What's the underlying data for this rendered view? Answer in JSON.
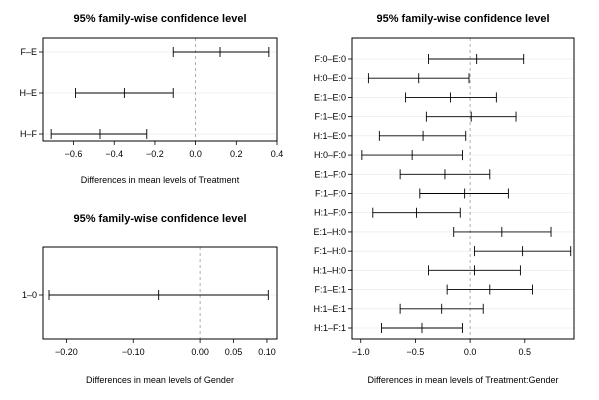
{
  "chart_data": [
    {
      "type": "errorbar",
      "title": "95% family-wise confidence level",
      "xlabel": "Differences in mean levels of Treatment",
      "xlim": [
        -0.75,
        0.4
      ],
      "xticks": [
        -0.6,
        -0.4,
        -0.2,
        0.0,
        0.2,
        0.4
      ],
      "xtick_labels": [
        "−0.6",
        "−0.4",
        "−0.2",
        "0.0",
        "0.2",
        "0.4"
      ],
      "reference_line": 0,
      "comparisons": [
        {
          "label": "F–E",
          "diff": 0.12,
          "lwr": -0.11,
          "upr": 0.36
        },
        {
          "label": "H–E",
          "diff": -0.35,
          "lwr": -0.59,
          "upr": -0.11
        },
        {
          "label": "H–F",
          "diff": -0.47,
          "lwr": -0.71,
          "upr": -0.24
        }
      ]
    },
    {
      "type": "errorbar",
      "title": "95% family-wise confidence level",
      "xlabel": "Differences in mean levels of Gender",
      "xlim": [
        -0.235,
        0.115
      ],
      "xticks": [
        -0.2,
        -0.1,
        0.0,
        0.05,
        0.1
      ],
      "xtick_labels": [
        "−0.20",
        "−0.10",
        "0.00",
        "0.05",
        "0.10"
      ],
      "reference_line": 0,
      "comparisons": [
        {
          "label": "1–0",
          "diff": -0.062,
          "lwr": -0.226,
          "upr": 0.102
        }
      ]
    },
    {
      "type": "errorbar",
      "title": "95% family-wise confidence level",
      "xlabel": "Differences in mean levels of Treatment:Gender",
      "xlim": [
        -1.08,
        0.95
      ],
      "xticks": [
        -1.0,
        -0.5,
        0.0,
        0.5
      ],
      "xtick_labels": [
        "−1.0",
        "−0.5",
        "0.0",
        "0.5"
      ],
      "reference_line": 0,
      "comparisons": [
        {
          "label": "F:0–E:0",
          "diff": 0.06,
          "lwr": -0.38,
          "upr": 0.49
        },
        {
          "label": "H:0–E:0",
          "diff": -0.47,
          "lwr": -0.93,
          "upr": -0.01
        },
        {
          "label": "E:1–E:0",
          "diff": -0.18,
          "lwr": -0.59,
          "upr": 0.24
        },
        {
          "label": "F:1–E:0",
          "diff": 0.01,
          "lwr": -0.4,
          "upr": 0.42
        },
        {
          "label": "H:1–E:0",
          "diff": -0.43,
          "lwr": -0.83,
          "upr": -0.04
        },
        {
          "label": "H:0–F:0",
          "diff": -0.53,
          "lwr": -0.99,
          "upr": -0.07
        },
        {
          "label": "E:1–F:0",
          "diff": -0.23,
          "lwr": -0.64,
          "upr": 0.18
        },
        {
          "label": "F:1–F:0",
          "diff": -0.05,
          "lwr": -0.46,
          "upr": 0.35
        },
        {
          "label": "H:1–F:0",
          "diff": -0.49,
          "lwr": -0.89,
          "upr": -0.09
        },
        {
          "label": "E:1–H:0",
          "diff": 0.29,
          "lwr": -0.15,
          "upr": 0.74
        },
        {
          "label": "F:1–H:0",
          "diff": 0.48,
          "lwr": 0.04,
          "upr": 0.92
        },
        {
          "label": "H:1–H:0",
          "diff": 0.04,
          "lwr": -0.38,
          "upr": 0.46
        },
        {
          "label": "F:1–E:1",
          "diff": 0.18,
          "lwr": -0.21,
          "upr": 0.57
        },
        {
          "label": "H:1–E:1",
          "diff": -0.26,
          "lwr": -0.64,
          "upr": 0.12
        },
        {
          "label": "H:1–F:1",
          "diff": -0.44,
          "lwr": -0.81,
          "upr": -0.07
        }
      ]
    }
  ]
}
